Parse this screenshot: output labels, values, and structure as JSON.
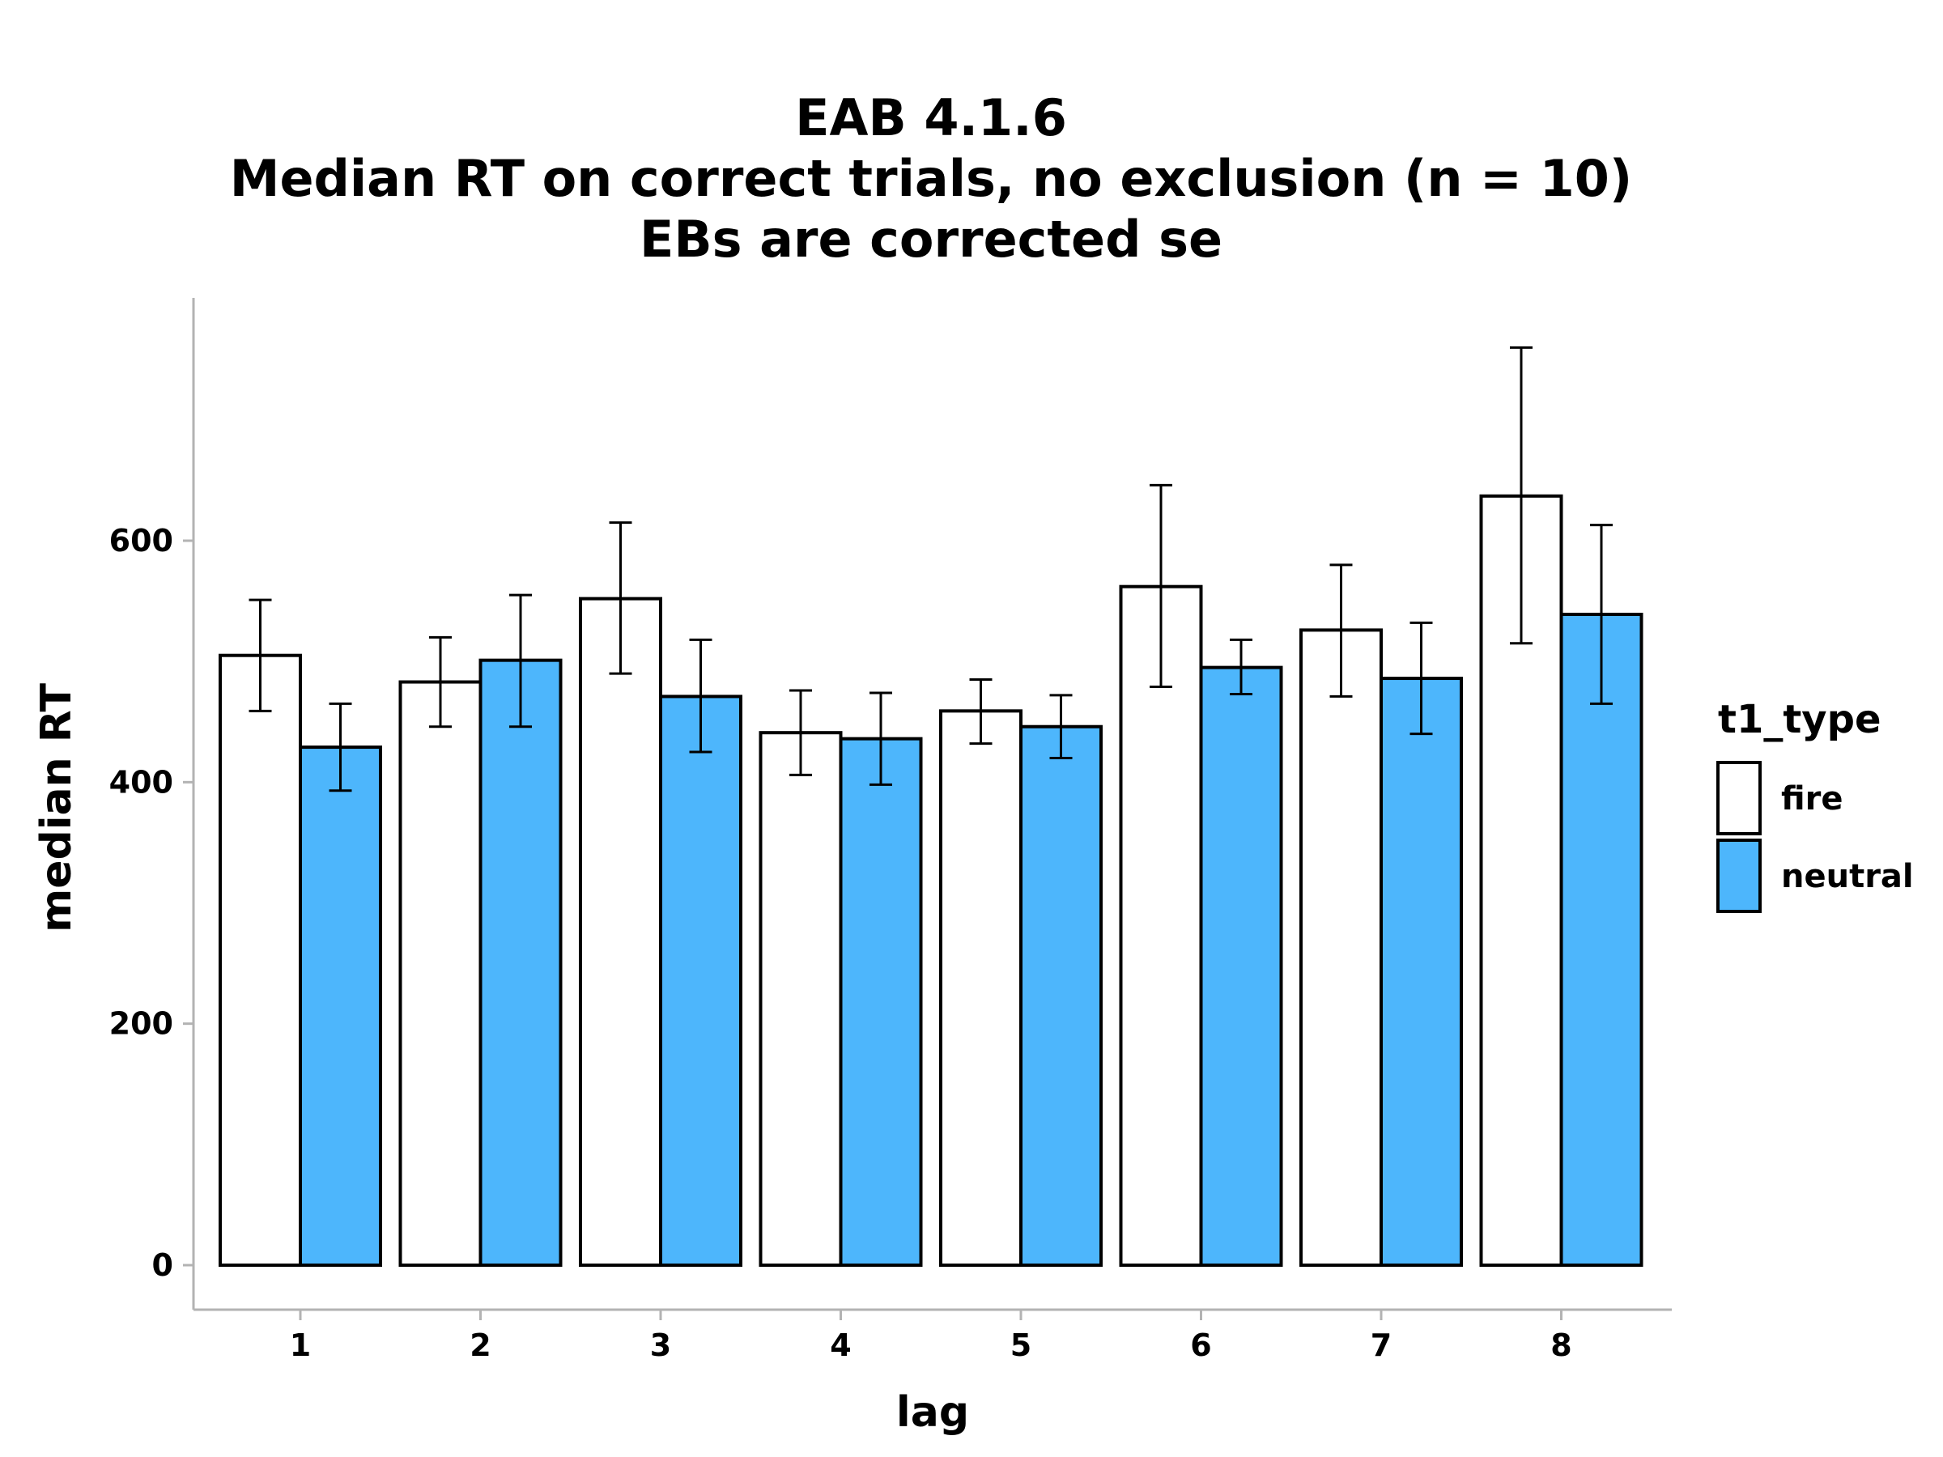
{
  "chart_data": {
    "type": "bar",
    "title": [
      "EAB 4.1.6",
      "Median RT on correct trials, no exclusion (n = 10)",
      "EBs are corrected se"
    ],
    "xlabel": "lag",
    "ylabel": "median RT",
    "categories": [
      "1",
      "2",
      "3",
      "4",
      "5",
      "6",
      "7",
      "8"
    ],
    "yticks": [
      0,
      200,
      400,
      600
    ],
    "ylim": [
      -38,
      800
    ],
    "legend": {
      "title": "t1_type",
      "placement": "right"
    },
    "series": [
      {
        "name": "fire",
        "color": "#ffffff",
        "values": [
          505,
          483,
          552,
          441,
          459,
          562,
          526,
          637
        ],
        "error_low": [
          459,
          446,
          490,
          406,
          432,
          479,
          471,
          515
        ],
        "error_high": [
          551,
          520,
          615,
          476,
          485,
          646,
          580,
          760
        ]
      },
      {
        "name": "neutral",
        "color": "#4db6fc",
        "values": [
          429,
          501,
          471,
          436,
          446,
          495,
          486,
          539
        ],
        "error_low": [
          393,
          446,
          425,
          398,
          420,
          473,
          440,
          465
        ],
        "error_high": [
          465,
          555,
          518,
          474,
          472,
          518,
          532,
          613
        ]
      }
    ]
  }
}
